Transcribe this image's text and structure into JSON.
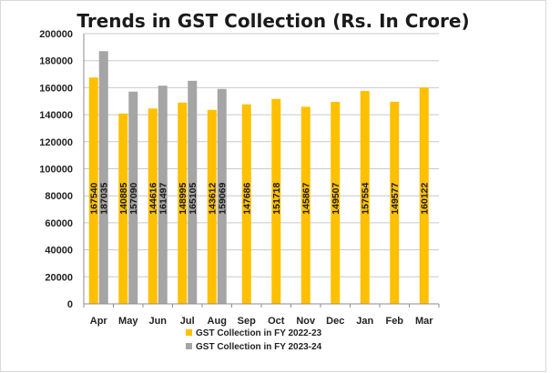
{
  "chart_data": {
    "type": "bar",
    "title": "Trends in GST Collection (Rs. In Crore)",
    "xlabel": "",
    "ylabel": "",
    "ylim": [
      0,
      200000
    ],
    "yticks": [
      0,
      20000,
      40000,
      60000,
      80000,
      100000,
      120000,
      140000,
      160000,
      180000,
      200000
    ],
    "categories": [
      "Apr",
      "May",
      "Jun",
      "Jul",
      "Aug",
      "Sep",
      "Oct",
      "Nov",
      "Dec",
      "Jan",
      "Feb",
      "Mar"
    ],
    "series": [
      {
        "name": "GST Collection in FY 2022-23",
        "color": "#FFC000",
        "values": [
          167540,
          140885,
          144616,
          148995,
          143612,
          147686,
          151718,
          145867,
          149507,
          157554,
          149577,
          160122
        ]
      },
      {
        "name": "GST Collection in FY 2023-24",
        "color": "#A5A5A5",
        "values": [
          187035,
          157090,
          161497,
          165105,
          159069,
          null,
          null,
          null,
          null,
          null,
          null,
          null
        ]
      }
    ],
    "data_labels": true,
    "data_label_orientation": "vertical",
    "grid": true,
    "legend_position": "bottom"
  }
}
